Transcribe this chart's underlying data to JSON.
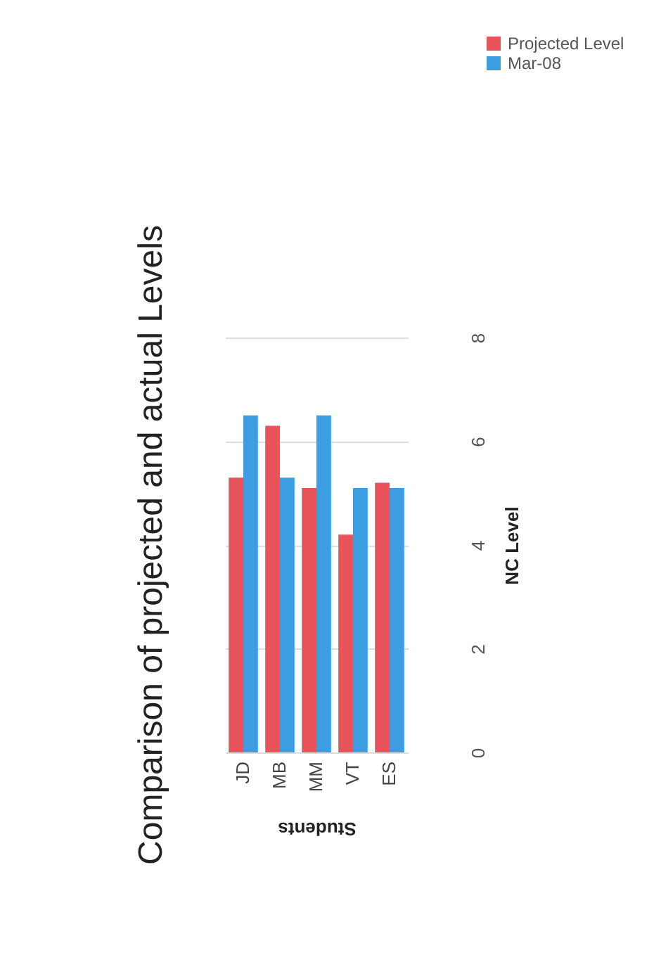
{
  "chart_data": {
    "type": "bar",
    "title": "Comparison of projected and actual Levels",
    "xlabel": "Students",
    "ylabel": "NC Level",
    "categories": [
      "JD",
      "MB",
      "MM",
      "VT",
      "ES"
    ],
    "series": [
      {
        "name": "Projected Level",
        "color": "#e8545a",
        "values": [
          5.3,
          6.3,
          5.1,
          4.2,
          5.2
        ]
      },
      {
        "name": "Mar-08",
        "color": "#3c9ee0",
        "values": [
          6.5,
          5.3,
          6.5,
          5.1,
          5.1
        ]
      }
    ],
    "ylim": [
      0,
      8
    ],
    "yticks": [
      0,
      2,
      4,
      6,
      8
    ],
    "grid": "y",
    "legend": "top right"
  }
}
